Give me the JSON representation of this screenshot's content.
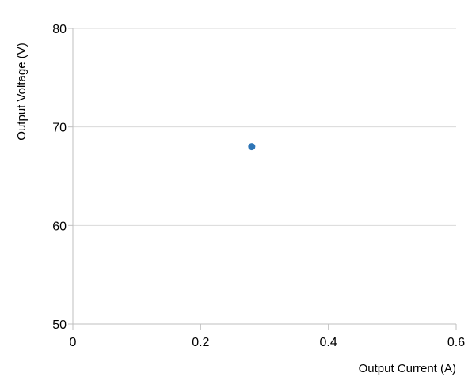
{
  "chart_data": {
    "type": "scatter",
    "xlabel": "Output Current (A)",
    "ylabel": "Output Voltage (V)",
    "xlim": [
      0,
      0.6
    ],
    "ylim": [
      50,
      80
    ],
    "x_ticks": [
      "0",
      "0.2",
      "0.4",
      "0.6"
    ],
    "y_ticks": [
      "50",
      "60",
      "70",
      "80"
    ],
    "grid": "horizontal",
    "series": [
      {
        "color": "#2e75b6",
        "points": [
          {
            "x": 0.28,
            "y": 68
          }
        ]
      }
    ]
  }
}
